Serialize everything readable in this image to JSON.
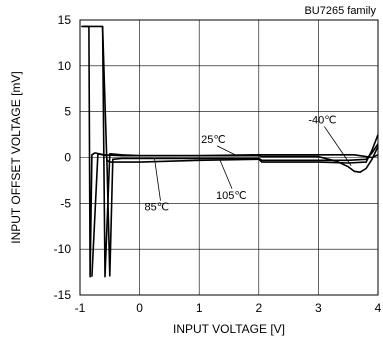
{
  "chart_data": {
    "type": "line",
    "family_label": "BU7265 family",
    "xlabel": "INPUT VOLTAGE [V]",
    "ylabel": "INPUT OFFSET VOLTAGE [mV]",
    "xlim": [
      -1,
      4
    ],
    "ylim": [
      -15,
      15
    ],
    "xticks": [
      -1,
      0,
      1,
      2,
      3,
      4
    ],
    "xtick_labels": [
      "-1",
      "0",
      "1",
      "2",
      "3",
      "4"
    ],
    "yticks": [
      -15,
      -10,
      -5,
      0,
      5,
      10,
      15
    ],
    "ytick_labels": [
      "-15",
      "-10",
      "-5",
      "0",
      "5",
      "10",
      "15"
    ],
    "grid": true,
    "line_color": "#000000",
    "series": [
      {
        "name": "-40℃",
        "x": [
          -0.95,
          -0.85,
          -0.83,
          -0.8,
          -0.75,
          -0.6,
          -0.3,
          0,
          1,
          2,
          2.05,
          3,
          3.3,
          3.5,
          3.6,
          3.7,
          3.8,
          3.9,
          4
        ],
        "y": [
          14.3,
          14.3,
          -13,
          0.3,
          0.5,
          0.3,
          0.2,
          0.2,
          0.2,
          0.2,
          0.1,
          0.1,
          -0.4,
          -1.0,
          -1.5,
          -1.6,
          -1.2,
          -0.2,
          1.2
        ]
      },
      {
        "name": "25℃",
        "x": [
          -0.98,
          -0.62,
          -0.58,
          -0.5,
          -0.3,
          0,
          1,
          2,
          2.05,
          3,
          3.6,
          3.7,
          3.8,
          3.9,
          4
        ],
        "y": [
          14.3,
          14.3,
          -13,
          0.4,
          0.3,
          0.2,
          0.2,
          0.3,
          0.3,
          0.3,
          0.3,
          0.2,
          0.1,
          0.0,
          0.3
        ]
      },
      {
        "name": "85℃",
        "x": [
          -0.8,
          -0.7,
          -0.55,
          -0.5,
          -0.45,
          -0.3,
          0,
          1,
          2,
          2.05,
          3,
          3.5,
          3.8,
          3.9,
          4
        ],
        "y": [
          -13,
          0.4,
          0.2,
          -12.9,
          -0.2,
          -0.1,
          -0.1,
          -0.1,
          -0.1,
          -0.3,
          -0.3,
          -0.3,
          -0.2,
          0.5,
          1.5
        ]
      },
      {
        "name": "105℃",
        "x": [
          -0.62,
          -0.55,
          -0.5,
          -0.3,
          0,
          1,
          2,
          2.05,
          3,
          3.5,
          3.8,
          3.9,
          4
        ],
        "y": [
          14.3,
          -0.3,
          -0.5,
          -0.5,
          -0.5,
          -0.3,
          -0.2,
          -0.5,
          -0.5,
          -0.6,
          -0.5,
          0.8,
          2.5
        ]
      }
    ],
    "annotations": [
      {
        "text": "-40℃",
        "x": 3.0,
        "y": 3.7,
        "point_x": 3.55,
        "point_y": -0.9
      },
      {
        "text": "25℃",
        "x": 1.2,
        "y": 1.6,
        "point_x": 1.6,
        "point_y": 0.3
      },
      {
        "text": "85℃",
        "x": 0.25,
        "y": -5.8,
        "point_x": 0.25,
        "point_y": -0.1
      },
      {
        "text": "105℃",
        "x": 1.45,
        "y": -4.5,
        "point_x": 1.35,
        "point_y": -0.3
      }
    ]
  }
}
